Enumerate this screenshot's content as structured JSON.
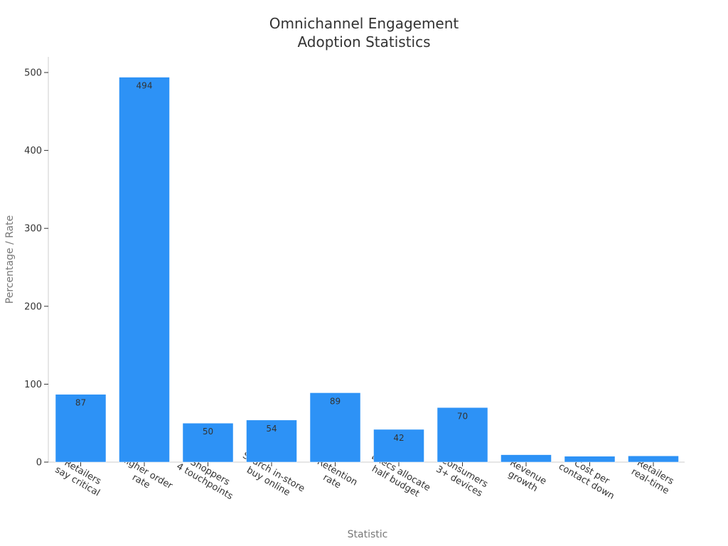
{
  "chart_data": {
    "type": "bar",
    "title_lines": [
      "Omnichannel Engagement",
      "Adoption Statistics"
    ],
    "xlabel": "Statistic",
    "ylabel": "Percentage / Rate",
    "ylim": [
      0,
      520
    ],
    "yticks": [
      0,
      100,
      200,
      300,
      400,
      500
    ],
    "categories": [
      [
        "Retailers",
        "say critical"
      ],
      [
        "Higher order",
        "rate"
      ],
      [
        "Shoppers",
        "4 touchpoints"
      ],
      [
        "Search in-store",
        "buy online"
      ],
      [
        "Retention",
        "rate"
      ],
      [
        "Execs allocate",
        "half budget"
      ],
      [
        "Consumers",
        "3+ devices"
      ],
      [
        "Revenue",
        "growth"
      ],
      [
        "Cost per",
        "contact down"
      ],
      [
        "Retailers",
        "real-time"
      ]
    ],
    "values": [
      87,
      494,
      50,
      54,
      89,
      42,
      70,
      9.5,
      7.5,
      8
    ],
    "data_labels": [
      "87",
      "494",
      "50",
      "54",
      "89",
      "42",
      "70",
      "",
      "",
      ""
    ],
    "bar_color": "#2d92f6",
    "grid": false,
    "legend": "none"
  }
}
